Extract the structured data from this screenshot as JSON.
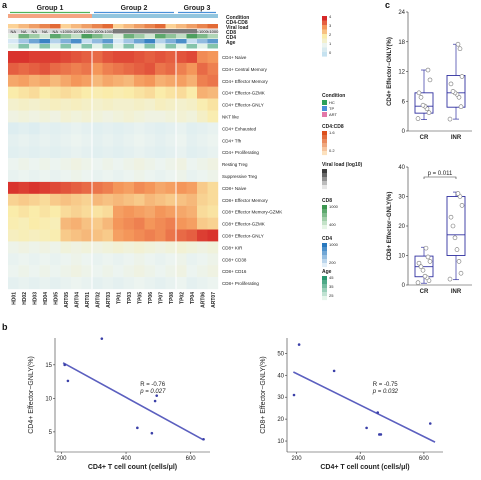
{
  "panels": {
    "a": "a",
    "b": "b",
    "c": "c"
  },
  "chart_data": [
    {
      "type": "heatmap",
      "groups": [
        {
          "label": "Group 1",
          "start": 0,
          "end": 7,
          "color": "#50b45a"
        },
        {
          "label": "Group 2",
          "start": 8,
          "end": 15,
          "color": "#4a90d9"
        },
        {
          "label": "Group 3",
          "start": 16,
          "end": 19,
          "color": "#4a90d9"
        }
      ],
      "group_bar_colors": [
        "#f4a582",
        "#92c5de",
        "#92c5de"
      ],
      "columns": [
        "HD01",
        "HD02",
        "HD03",
        "HD04",
        "HD05",
        "ART05",
        "ART04",
        "ART01",
        "ART02",
        "ART03",
        "TP01",
        "TP03",
        "TP05",
        "TP06",
        "TP07",
        "TP08",
        "TP02",
        "TP04",
        "ART06",
        "ART07"
      ],
      "annotation_rows": [
        "Condition",
        "CD4-CD8",
        "Viral load",
        "CD8",
        "CD4",
        "Age"
      ],
      "condition": [
        "HC",
        "HC",
        "HC",
        "HC",
        "HC",
        "ART",
        "ART",
        "ART",
        "ART",
        "ART",
        "TP",
        "TP",
        "TP",
        "TP",
        "TP",
        "TP",
        "TP",
        "TP",
        "ART",
        "ART"
      ],
      "viral_load_text": [
        "NA",
        "NA",
        "NA",
        "NA",
        "NA",
        "<1000",
        "<1000",
        "<1000",
        "<1000",
        "<1000",
        "",
        "",
        "",
        "",
        "",
        "",
        "",
        "",
        "<1000",
        "<1000"
      ],
      "rows": [
        "CD4+ Naive",
        "CD4+ Central Memory",
        "CD4+ Effector Memory",
        "CD4+ Effector-GZMK",
        "CD4+ Effector-GNLY",
        "NKT like",
        "CD4+ Exhausted",
        "CD4+ Tfh",
        "CD4+ Proliferating",
        "Resting Treg",
        "Suppressive Treg",
        "CD8+ Naive",
        "CD8+ Effector Memory",
        "CD8+ Effector Memory-GZMK",
        "CD8+ Effector-GZMK",
        "CD8+ Effector-GNLY",
        "CD8+ KIR",
        "CD8+ CD38",
        "CD8+ CD16",
        "CD8+ Proliferating"
      ],
      "color_scale": {
        "min": 0,
        "mid": 2,
        "max": 4,
        "ticks": [
          "4",
          "3",
          "2",
          "1",
          "0"
        ]
      },
      "values": [
        [
          3.9,
          3.9,
          3.8,
          3.8,
          3.8,
          3.7,
          3.6,
          3.5,
          3.4,
          3.6,
          3.7,
          3.7,
          3.6,
          3.5,
          3.6,
          3.5,
          3.6,
          3.7,
          3.1,
          3.0
        ],
        [
          3.5,
          3.4,
          3.5,
          3.6,
          3.4,
          3.3,
          3.2,
          3.3,
          3.0,
          3.2,
          3.3,
          3.4,
          3.5,
          3.6,
          3.3,
          3.4,
          3.2,
          3.0,
          3.4,
          3.2
        ],
        [
          2.8,
          2.9,
          2.7,
          2.8,
          2.6,
          2.8,
          3.0,
          2.9,
          2.6,
          2.8,
          2.7,
          2.6,
          2.9,
          3.0,
          2.7,
          2.8,
          2.9,
          2.7,
          3.2,
          3.3
        ],
        [
          2.0,
          2.1,
          2.2,
          2.0,
          2.1,
          2.2,
          2.1,
          2.0,
          1.9,
          2.0,
          1.9,
          2.0,
          2.1,
          2.2,
          2.0,
          2.1,
          2.2,
          2.0,
          2.7,
          2.6
        ],
        [
          1.5,
          1.6,
          1.5,
          1.6,
          1.7,
          1.6,
          1.7,
          1.6,
          1.5,
          1.6,
          1.5,
          1.5,
          1.6,
          1.5,
          1.7,
          1.6,
          1.5,
          1.6,
          1.9,
          2.1
        ],
        [
          1.2,
          1.3,
          1.2,
          1.3,
          1.2,
          1.4,
          1.3,
          1.4,
          1.3,
          1.2,
          1.3,
          1.4,
          1.3,
          1.2,
          1.2,
          1.3,
          1.4,
          1.3,
          1.6,
          1.9
        ],
        [
          0.6,
          0.7,
          0.6,
          0.8,
          0.7,
          0.8,
          0.9,
          0.8,
          0.7,
          0.8,
          0.7,
          0.8,
          0.9,
          0.8,
          0.7,
          0.8,
          0.9,
          0.7,
          0.8,
          0.9
        ],
        [
          0.8,
          0.9,
          0.8,
          0.9,
          0.8,
          0.9,
          1.0,
          0.9,
          0.8,
          0.9,
          0.8,
          0.9,
          1.0,
          0.9,
          0.8,
          0.9,
          1.0,
          0.8,
          0.9,
          1.0
        ],
        [
          0.7,
          0.8,
          0.7,
          0.8,
          0.7,
          0.8,
          0.9,
          0.8,
          0.7,
          0.8,
          0.7,
          0.8,
          0.9,
          0.8,
          0.7,
          0.8,
          0.9,
          0.7,
          0.8,
          0.9
        ],
        [
          1.0,
          1.1,
          1.0,
          1.1,
          1.0,
          1.1,
          1.2,
          1.1,
          1.0,
          1.1,
          1.0,
          1.1,
          1.2,
          1.1,
          1.0,
          1.1,
          1.2,
          1.0,
          1.1,
          1.2
        ],
        [
          0.9,
          1.0,
          0.9,
          1.0,
          0.9,
          1.0,
          1.1,
          1.0,
          0.9,
          1.0,
          0.9,
          1.0,
          1.1,
          1.0,
          0.9,
          1.0,
          1.1,
          0.9,
          1.0,
          1.1
        ],
        [
          3.9,
          3.8,
          3.9,
          3.8,
          3.7,
          3.6,
          3.5,
          3.4,
          3.3,
          3.2,
          3.0,
          2.9,
          3.1,
          3.0,
          2.8,
          2.9,
          3.0,
          2.9,
          2.4,
          2.2
        ],
        [
          2.3,
          2.4,
          2.3,
          2.2,
          2.4,
          2.5,
          2.4,
          2.3,
          2.6,
          2.5,
          2.6,
          2.5,
          2.4,
          2.6,
          2.5,
          2.4,
          2.5,
          2.6,
          2.3,
          2.2
        ],
        [
          2.0,
          2.1,
          2.0,
          2.1,
          2.0,
          2.2,
          2.3,
          2.2,
          2.1,
          2.2,
          2.9,
          3.0,
          2.9,
          2.8,
          3.0,
          2.9,
          2.8,
          2.7,
          2.2,
          2.1
        ],
        [
          1.9,
          1.8,
          2.0,
          1.9,
          1.8,
          2.6,
          2.7,
          2.5,
          2.4,
          2.6,
          3.0,
          3.1,
          3.2,
          3.0,
          3.1,
          3.2,
          3.0,
          2.9,
          2.4,
          2.3
        ],
        [
          1.7,
          1.8,
          1.7,
          1.8,
          1.9,
          2.4,
          2.5,
          2.6,
          2.5,
          2.4,
          2.9,
          3.0,
          3.1,
          3.2,
          3.1,
          3.3,
          3.4,
          3.5,
          3.8,
          3.9
        ],
        [
          1.1,
          1.2,
          1.1,
          1.2,
          1.1,
          1.3,
          1.2,
          1.3,
          1.2,
          1.3,
          1.4,
          1.3,
          1.4,
          1.3,
          1.2,
          1.3,
          1.4,
          1.3,
          1.2,
          1.3
        ],
        [
          0.9,
          1.0,
          0.9,
          1.0,
          0.9,
          1.0,
          1.1,
          1.0,
          0.9,
          1.0,
          0.9,
          1.0,
          1.1,
          1.0,
          0.9,
          1.0,
          1.1,
          0.9,
          1.0,
          1.1
        ],
        [
          1.0,
          1.1,
          1.0,
          1.1,
          1.0,
          1.1,
          1.2,
          1.1,
          1.0,
          1.1,
          1.0,
          1.1,
          1.2,
          1.1,
          1.0,
          1.1,
          1.2,
          1.0,
          1.1,
          1.2
        ],
        [
          0.8,
          0.9,
          0.8,
          0.9,
          0.8,
          0.9,
          1.0,
          0.9,
          0.8,
          0.9,
          0.8,
          0.9,
          1.0,
          0.9,
          0.8,
          0.9,
          1.0,
          0.8,
          0.9,
          1.0
        ]
      ],
      "legends": {
        "condition": {
          "title": "Condition",
          "items": [
            {
              "label": "HC",
              "color": "#2ca05a"
            },
            {
              "label": "TP",
              "color": "#4a90d9"
            },
            {
              "label": "ART",
              "color": "#e377a8"
            }
          ]
        },
        "cd4_cd8": {
          "title": "CD4:CD8",
          "ticks": [
            "1.6",
            "0.2"
          ]
        },
        "viral_load": {
          "title": "Viral load (log10)",
          "ticks": [
            "",
            ""
          ]
        },
        "cd8": {
          "title": "CD8",
          "ticks": [
            "1000",
            "400"
          ]
        },
        "cd4": {
          "title": "CD4",
          "ticks": [
            "1000",
            "200"
          ]
        },
        "age": {
          "title": "Age",
          "ticks": [
            "45",
            "35",
            "25"
          ]
        }
      }
    },
    {
      "type": "scatter",
      "xlabel": "CD4+ T cell count (cells/μl)",
      "ylabel": "CD4+ Effector−GNLY(%)",
      "xlim": [
        180,
        660
      ],
      "ylim": [
        2,
        19
      ],
      "xticks": [
        200,
        400,
        600
      ],
      "yticks": [
        5,
        10,
        15
      ],
      "points": [
        [
          210,
          15.0
        ],
        [
          220,
          12.6
        ],
        [
          325,
          18.9
        ],
        [
          435,
          5.6
        ],
        [
          490,
          9.6
        ],
        [
          495,
          10.4
        ],
        [
          480,
          4.8
        ],
        [
          640,
          3.9
        ]
      ],
      "fit": [
        [
          205,
          15.3
        ],
        [
          640,
          3.8
        ]
      ],
      "stats": {
        "r": "R = -0.76",
        "p": "p = 0.027"
      }
    },
    {
      "type": "scatter",
      "xlabel": "CD4+ T cell count (cells/μl)",
      "ylabel": "CD8+ Effector−GNLY(%)",
      "xlim": [
        170,
        660
      ],
      "ylim": [
        5,
        57
      ],
      "xticks": [
        200,
        400,
        600
      ],
      "yticks": [
        10,
        20,
        30,
        40,
        50
      ],
      "points": [
        [
          192,
          31
        ],
        [
          208,
          54
        ],
        [
          318,
          42
        ],
        [
          420,
          16
        ],
        [
          455,
          23
        ],
        [
          460,
          13
        ],
        [
          465,
          13
        ],
        [
          620,
          18
        ]
      ],
      "fit": [
        [
          190,
          41.5
        ],
        [
          635,
          9.5
        ]
      ],
      "stats": {
        "r": "R = -0.75",
        "p": "p = 0.032"
      }
    },
    {
      "type": "box",
      "ylabel": "CD4+ Effector−GNLY(%)",
      "ylim": [
        0,
        24
      ],
      "yticks": [
        0,
        6,
        12,
        18,
        24
      ],
      "categories": [
        "CR",
        "INR"
      ],
      "boxes": [
        {
          "q1": 3.6,
          "median": 5.0,
          "q3": 7.7,
          "whisker_low": 2.3,
          "whisker_high": 12.3,
          "points": [
            2.5,
            3.7,
            4.5,
            5.0,
            5.2,
            6.8,
            7.7,
            10.3,
            12.3
          ]
        },
        {
          "q1": 4.8,
          "median": 7.7,
          "q3": 11.2,
          "whisker_low": 2.4,
          "whisker_high": 17.5,
          "points": [
            2.4,
            4.9,
            6.8,
            7.4,
            7.7,
            8.0,
            9.5,
            11.0,
            16.6,
            17.5
          ]
        }
      ]
    },
    {
      "type": "box",
      "ylabel": "CD8+ Effector−GNLY(%)",
      "ylim": [
        0,
        40
      ],
      "yticks": [
        0,
        10,
        20,
        30,
        40
      ],
      "categories": [
        "CR",
        "INR"
      ],
      "annotation": "p = 0.011",
      "boxes": [
        {
          "q1": 2.8,
          "median": 6.2,
          "q3": 9.8,
          "whisker_low": 0.6,
          "whisker_high": 12.8,
          "points": [
            0.8,
            1.5,
            2.5,
            3.0,
            5.0,
            6.2,
            7.4,
            8.0,
            9.5,
            12.5
          ]
        },
        {
          "q1": 10.0,
          "median": 17.0,
          "q3": 30.0,
          "whisker_low": 1.8,
          "whisker_high": 31.5,
          "points": [
            2.0,
            4.0,
            8.0,
            12.0,
            16.0,
            20.0,
            23.0,
            27.0,
            30.0,
            31.0
          ]
        }
      ]
    }
  ]
}
